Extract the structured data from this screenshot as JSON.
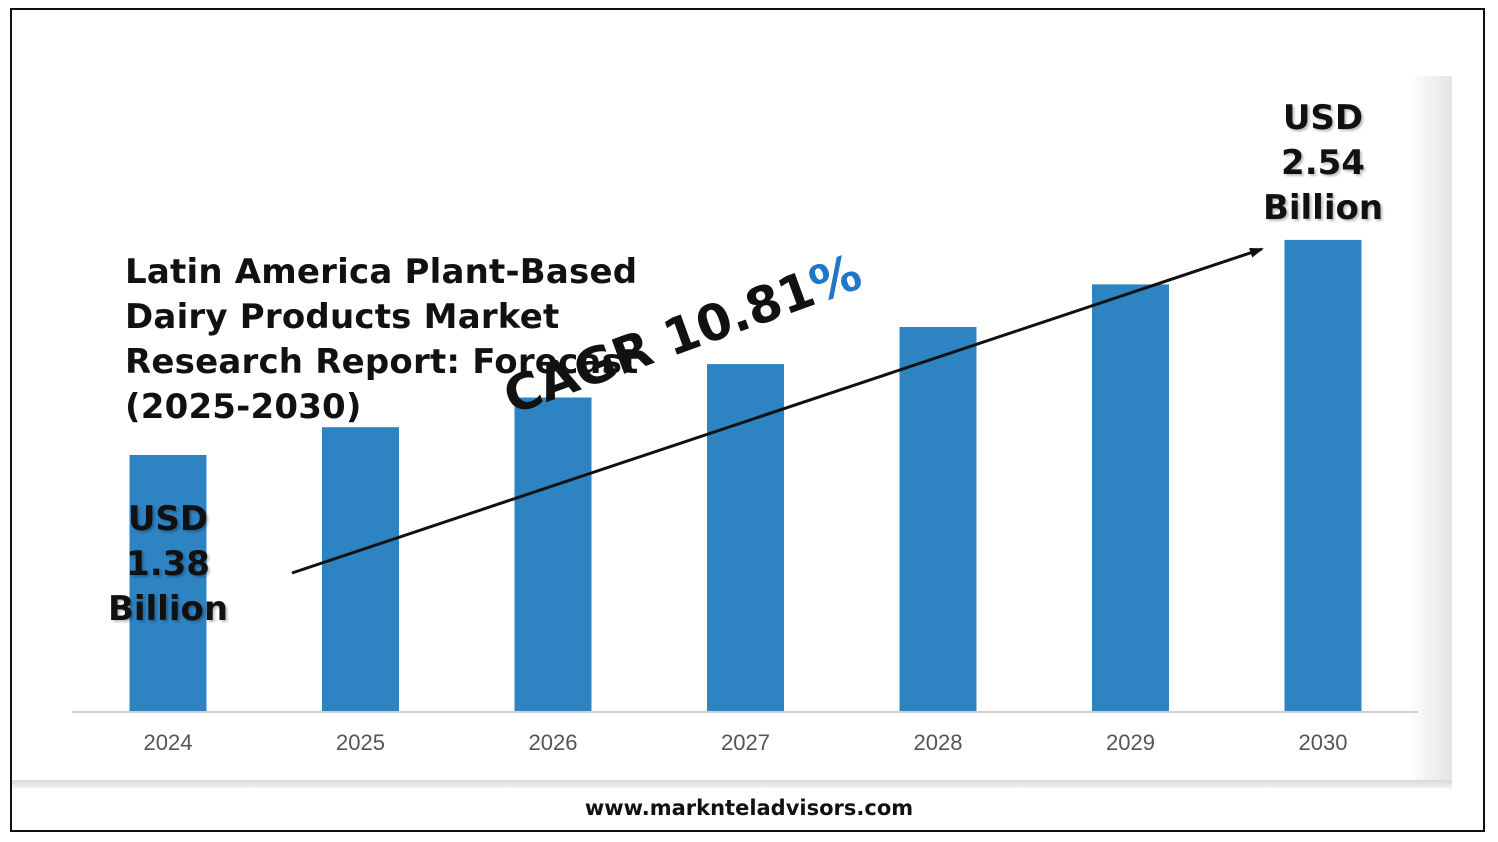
{
  "chart_data": {
    "type": "bar",
    "title": "Latin America Plant-Based Dairy Products Market Research Report: Forecast (2025-2030)",
    "categories": [
      "2024",
      "2025",
      "2026",
      "2027",
      "2028",
      "2029",
      "2030"
    ],
    "values": [
      1.38,
      1.53,
      1.69,
      1.87,
      2.07,
      2.3,
      2.54
    ],
    "ylim": [
      0,
      3.1
    ],
    "xlabel": "",
    "ylabel": "",
    "grid": false,
    "bar_color": "#2e83c3",
    "annotations": {
      "start": {
        "line1": "USD",
        "line2": "1.38",
        "line3": "Billion"
      },
      "end": {
        "line1": "USD",
        "line2": "2.54",
        "line3": "Billion"
      },
      "cagr_text": "CAGR 10.81",
      "cagr_pct": "%"
    }
  },
  "footer": {
    "website": "www.marknteladvisors.com"
  }
}
